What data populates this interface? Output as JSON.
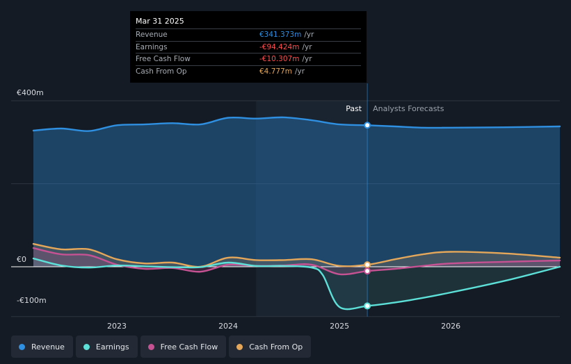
{
  "chart_data": {
    "type": "line",
    "title": "",
    "ylim": [
      -100,
      400
    ],
    "y_tick_labels": [
      "€400m",
      "€0",
      "-€100m"
    ],
    "y_ticks": [
      400,
      0,
      -100
    ],
    "x_ticks": [
      2023,
      2024,
      2025,
      2026
    ],
    "x_tick_labels": [
      "2023",
      "2024",
      "2025",
      "2026"
    ],
    "xlim": [
      2022.25,
      2026.98
    ],
    "past_shade_start": 2024.25,
    "divider_x": 2025.25,
    "past_label": "Past",
    "forecast_label": "Analysts Forecasts",
    "series": [
      {
        "name": "Revenue",
        "key": "revenue",
        "color": "#2f8fe0",
        "x": [
          2022.25,
          2022.5,
          2022.75,
          2023.0,
          2023.25,
          2023.5,
          2023.75,
          2024.0,
          2024.25,
          2024.5,
          2024.75,
          2025.0,
          2025.25,
          2025.5,
          2025.75,
          2026.0,
          2026.5,
          2026.98
        ],
        "values": [
          328,
          333,
          327,
          341,
          343,
          346,
          343,
          359,
          357,
          360,
          353,
          343,
          341,
          338,
          335,
          335,
          336,
          338
        ]
      },
      {
        "name": "Earnings",
        "key": "earnings",
        "color": "#5ce0d8",
        "x": [
          2022.25,
          2022.5,
          2022.75,
          2023.0,
          2023.25,
          2023.5,
          2023.75,
          2024.0,
          2024.25,
          2024.5,
          2024.75,
          2024.85,
          2025.0,
          2025.25,
          2025.5,
          2025.75,
          2026.0,
          2026.5,
          2026.98
        ],
        "values": [
          20,
          3,
          -2,
          3,
          1,
          -1,
          -1,
          10,
          2,
          2,
          -2,
          -20,
          -97,
          -94.4,
          -86,
          -75,
          -62,
          -33,
          0
        ]
      },
      {
        "name": "Free Cash Flow",
        "key": "fcf",
        "color": "#c65293",
        "x": [
          2022.25,
          2022.5,
          2022.75,
          2023.0,
          2023.25,
          2023.5,
          2023.75,
          2024.0,
          2024.25,
          2024.5,
          2024.75,
          2025.0,
          2025.25,
          2025.5,
          2025.75,
          2026.0,
          2026.5,
          2026.98
        ],
        "values": [
          45,
          30,
          28,
          5,
          -5,
          -3,
          -12,
          5,
          2,
          3,
          5,
          -18,
          -10.3,
          -5,
          2,
          8,
          12,
          15
        ]
      },
      {
        "name": "Cash From Op",
        "key": "cfo",
        "color": "#e5a85b",
        "x": [
          2022.25,
          2022.5,
          2022.75,
          2023.0,
          2023.25,
          2023.5,
          2023.75,
          2024.0,
          2024.25,
          2024.5,
          2024.75,
          2025.0,
          2025.25,
          2025.5,
          2025.75,
          2026.0,
          2026.5,
          2026.98
        ],
        "values": [
          55,
          42,
          42,
          18,
          8,
          10,
          0,
          22,
          16,
          16,
          18,
          2,
          4.8,
          18,
          30,
          36,
          32,
          22
        ]
      }
    ],
    "highlight_x": 2025.25
  },
  "tooltip": {
    "date": "Mar 31 2025",
    "unit": "/yr",
    "rows": [
      {
        "label": "Revenue",
        "value": "€341.373m",
        "color": "#2f8fe0"
      },
      {
        "label": "Earnings",
        "value": "-€94.424m",
        "color": "#ff4d4f"
      },
      {
        "label": "Free Cash Flow",
        "value": "-€10.307m",
        "color": "#ff4d4f"
      },
      {
        "label": "Cash From Op",
        "value": "€4.777m",
        "color": "#e5a85b"
      }
    ]
  },
  "legend": [
    {
      "label": "Revenue",
      "color": "#2f8fe0"
    },
    {
      "label": "Earnings",
      "color": "#5ce0d8"
    },
    {
      "label": "Free Cash Flow",
      "color": "#c65293"
    },
    {
      "label": "Cash From Op",
      "color": "#e5a85b"
    }
  ]
}
